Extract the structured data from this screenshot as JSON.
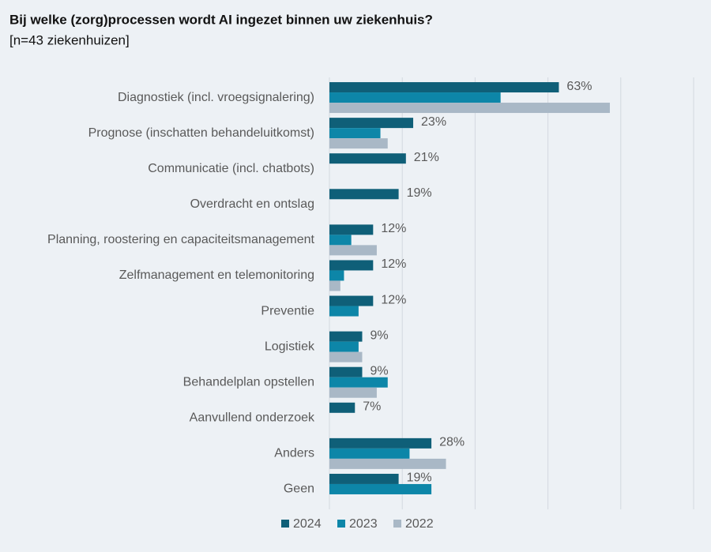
{
  "chart_data": {
    "type": "bar",
    "orientation": "horizontal",
    "title": "Bij welke (zorg)processen wordt AI ingezet binnen uw ziekenhuis?",
    "subtitle": "[n=43 ziekenhuizen]",
    "categories": [
      "Diagnostiek (incl. vroegsignalering)",
      "Prognose (inschatten behandeluitkomst)",
      "Communicatie (incl. chatbots)",
      "Overdracht en ontslag",
      "Planning, roostering en capaciteitsmanagement",
      "Zelfmanagement en telemonitoring",
      "Preventie",
      "Logistiek",
      "Behandelplan opstellen",
      "Aanvullend onderzoek",
      "Anders",
      "Geen"
    ],
    "series": [
      {
        "name": "2024",
        "color": "#0f5f78",
        "values": [
          63,
          23,
          21,
          19,
          12,
          12,
          12,
          9,
          9,
          7,
          28,
          19
        ],
        "value_labels": [
          "63%",
          "23%",
          "21%",
          "19%",
          "12%",
          "12%",
          "12%",
          "9%",
          "9%",
          "7%",
          "28%",
          "19%"
        ]
      },
      {
        "name": "2023",
        "color": "#0d86a8",
        "values": [
          47,
          14,
          null,
          null,
          6,
          4,
          8,
          8,
          16,
          null,
          22,
          28
        ]
      },
      {
        "name": "2022",
        "color": "#a9b8c6",
        "values": [
          77,
          16,
          null,
          null,
          13,
          3,
          null,
          9,
          13,
          null,
          32,
          null
        ]
      }
    ],
    "xlim": [
      0,
      100
    ],
    "xticks": [
      0,
      20,
      40,
      60,
      80,
      100
    ],
    "grid": true,
    "legend": "bottom"
  }
}
